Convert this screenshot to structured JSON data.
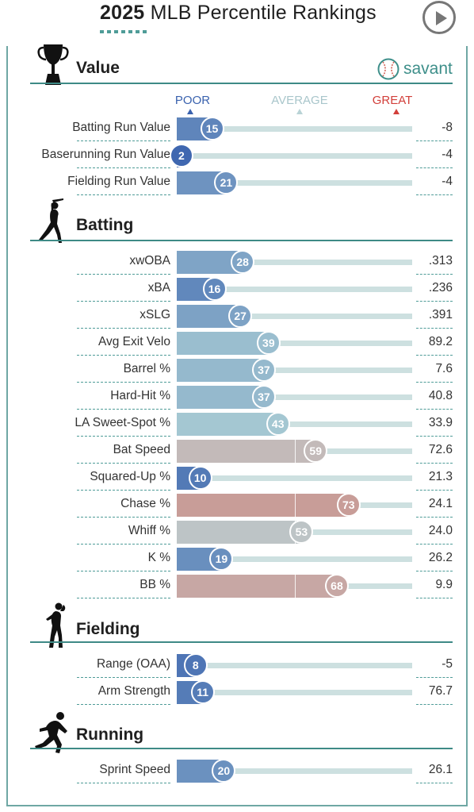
{
  "header": {
    "title_year": "2025",
    "title_rest": " MLB Percentile Rankings",
    "brand": "savant"
  },
  "scale": {
    "poor": "POOR",
    "average": "AVERAGE",
    "great": "GREAT"
  },
  "colors": {
    "poor": "#3a62ae",
    "average_blue": "#a9ccd4",
    "average": "#c2c2c2",
    "great": "#d2655a",
    "accent": "#3e8a86"
  },
  "chart_data": {
    "type": "bar",
    "orientation": "horizontal",
    "xlim": [
      0,
      100
    ],
    "sections": [
      {
        "name": "Value",
        "rows": [
          {
            "label": "Batting Run Value",
            "percentile": 15,
            "value": "-8"
          },
          {
            "label": "Baserunning Run Value",
            "percentile": 2,
            "value": "-4"
          },
          {
            "label": "Fielding Run Value",
            "percentile": 21,
            "value": "-4"
          }
        ]
      },
      {
        "name": "Batting",
        "rows": [
          {
            "label": "xwOBA",
            "percentile": 28,
            "value": ".313"
          },
          {
            "label": "xBA",
            "percentile": 16,
            "value": ".236"
          },
          {
            "label": "xSLG",
            "percentile": 27,
            "value": ".391"
          },
          {
            "label": "Avg Exit Velo",
            "percentile": 39,
            "value": "89.2"
          },
          {
            "label": "Barrel %",
            "percentile": 37,
            "value": "7.6"
          },
          {
            "label": "Hard-Hit %",
            "percentile": 37,
            "value": "40.8"
          },
          {
            "label": "LA Sweet-Spot %",
            "percentile": 43,
            "value": "33.9"
          },
          {
            "label": "Bat Speed",
            "percentile": 59,
            "value": "72.6"
          },
          {
            "label": "Squared-Up %",
            "percentile": 10,
            "value": "21.3"
          },
          {
            "label": "Chase %",
            "percentile": 73,
            "value": "24.1"
          },
          {
            "label": "Whiff %",
            "percentile": 53,
            "value": "24.0"
          },
          {
            "label": "K %",
            "percentile": 19,
            "value": "26.2"
          },
          {
            "label": "BB %",
            "percentile": 68,
            "value": "9.9"
          }
        ]
      },
      {
        "name": "Fielding",
        "rows": [
          {
            "label": "Range (OAA)",
            "percentile": 8,
            "value": "-5"
          },
          {
            "label": "Arm Strength",
            "percentile": 11,
            "value": "76.7"
          }
        ]
      },
      {
        "name": "Running",
        "rows": [
          {
            "label": "Sprint Speed",
            "percentile": 20,
            "value": "26.1"
          }
        ]
      }
    ]
  }
}
